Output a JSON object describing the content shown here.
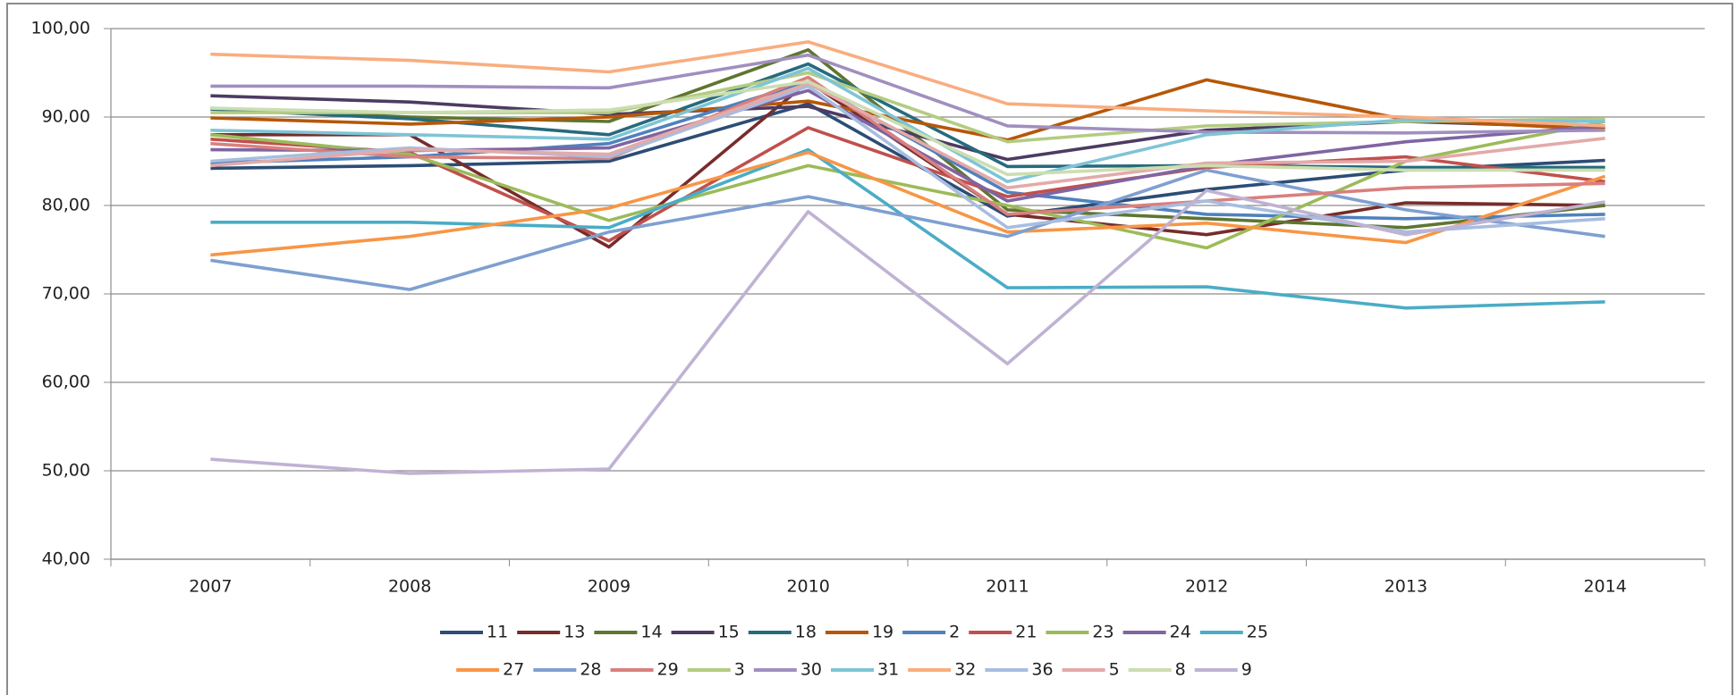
{
  "chart_data": {
    "type": "line",
    "categories": [
      "2007",
      "2008",
      "2009",
      "2010",
      "2011",
      "2012",
      "2013",
      "2014"
    ],
    "ylim": [
      40,
      100
    ],
    "yticks": [
      {
        "value": 40,
        "label": "40,00"
      },
      {
        "value": 50,
        "label": "50,00"
      },
      {
        "value": 60,
        "label": "60,00"
      },
      {
        "value": 70,
        "label": "70,00"
      },
      {
        "value": 80,
        "label": "80,00"
      },
      {
        "value": 90,
        "label": "90,00"
      },
      {
        "value": 100,
        "label": "100,00"
      }
    ],
    "grid": true,
    "legend": "bottom",
    "series": [
      {
        "name": "11",
        "color": "#2c4d75",
        "values": [
          84.2,
          84.5,
          85.0,
          91.5,
          78.8,
          81.8,
          84.0,
          85.1
        ]
      },
      {
        "name": "13",
        "color": "#772c2a",
        "values": [
          88.0,
          88.0,
          75.3,
          94.0,
          79.0,
          76.7,
          80.3,
          80.0
        ]
      },
      {
        "name": "14",
        "color": "#5f7530",
        "values": [
          91.0,
          90.0,
          89.5,
          97.6,
          79.5,
          78.5,
          77.5,
          80.0
        ]
      },
      {
        "name": "15",
        "color": "#4d3b62",
        "values": [
          92.4,
          91.7,
          90.3,
          91.2,
          85.2,
          88.5,
          89.5,
          88.8
        ]
      },
      {
        "name": "18",
        "color": "#276a7c",
        "values": [
          90.9,
          89.8,
          88.0,
          96.0,
          84.4,
          84.5,
          84.3,
          84.3
        ]
      },
      {
        "name": "19",
        "color": "#b65708",
        "values": [
          89.9,
          89.2,
          90.0,
          91.8,
          87.4,
          94.2,
          89.7,
          88.6
        ]
      },
      {
        "name": "2",
        "color": "#4f81bd",
        "values": [
          84.8,
          85.5,
          87.0,
          94.0,
          81.5,
          79.0,
          78.5,
          79.0
        ]
      },
      {
        "name": "21",
        "color": "#c0504d",
        "values": [
          87.5,
          86.0,
          76.0,
          88.8,
          81.0,
          84.3,
          85.5,
          82.7
        ]
      },
      {
        "name": "23",
        "color": "#9bbb59",
        "values": [
          88.0,
          85.8,
          78.3,
          84.5,
          80.0,
          75.2,
          85.0,
          89.5
        ]
      },
      {
        "name": "24",
        "color": "#8064a2",
        "values": [
          86.3,
          86.2,
          86.5,
          93.0,
          80.5,
          84.5,
          87.2,
          89.0
        ]
      },
      {
        "name": "25",
        "color": "#4bacc6",
        "values": [
          78.1,
          78.1,
          77.5,
          86.3,
          70.7,
          70.8,
          68.4,
          69.1
        ]
      },
      {
        "name": "27",
        "color": "#f79646",
        "values": [
          74.4,
          76.5,
          79.7,
          86.0,
          77.0,
          78.0,
          75.8,
          83.3
        ]
      },
      {
        "name": "28",
        "color": "#7f9fd0",
        "values": [
          73.8,
          70.5,
          77.0,
          81.0,
          76.5,
          84.0,
          79.5,
          76.5
        ]
      },
      {
        "name": "29",
        "color": "#d9807e",
        "values": [
          87.0,
          85.5,
          85.3,
          94.5,
          79.0,
          80.5,
          82.0,
          82.5
        ]
      },
      {
        "name": "3",
        "color": "#b3cc82",
        "values": [
          90.5,
          90.5,
          90.5,
          95.0,
          87.2,
          89.0,
          89.5,
          89.8
        ]
      },
      {
        "name": "30",
        "color": "#a08fbf",
        "values": [
          93.5,
          93.5,
          93.3,
          97.0,
          89.0,
          88.3,
          88.2,
          88.5
        ]
      },
      {
        "name": "31",
        "color": "#7fc4d6",
        "values": [
          88.5,
          88.0,
          87.5,
          95.5,
          82.7,
          88.0,
          89.7,
          89.5
        ]
      },
      {
        "name": "32",
        "color": "#f9ad7f",
        "values": [
          97.1,
          96.4,
          95.1,
          98.5,
          91.5,
          90.7,
          90.0,
          89.0
        ]
      },
      {
        "name": "36",
        "color": "#a7bde0",
        "values": [
          85.0,
          86.5,
          85.5,
          93.5,
          77.5,
          80.5,
          77.0,
          78.5
        ]
      },
      {
        "name": "5",
        "color": "#e3aaa9",
        "values": [
          84.5,
          86.3,
          85.8,
          93.8,
          82.0,
          84.8,
          85.0,
          87.6
        ]
      },
      {
        "name": "8",
        "color": "#ccdeb0",
        "values": [
          91.0,
          90.5,
          90.8,
          94.0,
          83.5,
          84.5,
          84.0,
          84.0
        ]
      },
      {
        "name": "9",
        "color": "#bfb2d3",
        "values": [
          51.3,
          49.7,
          50.2,
          79.3,
          62.1,
          81.7,
          76.7,
          80.4
        ]
      }
    ]
  }
}
